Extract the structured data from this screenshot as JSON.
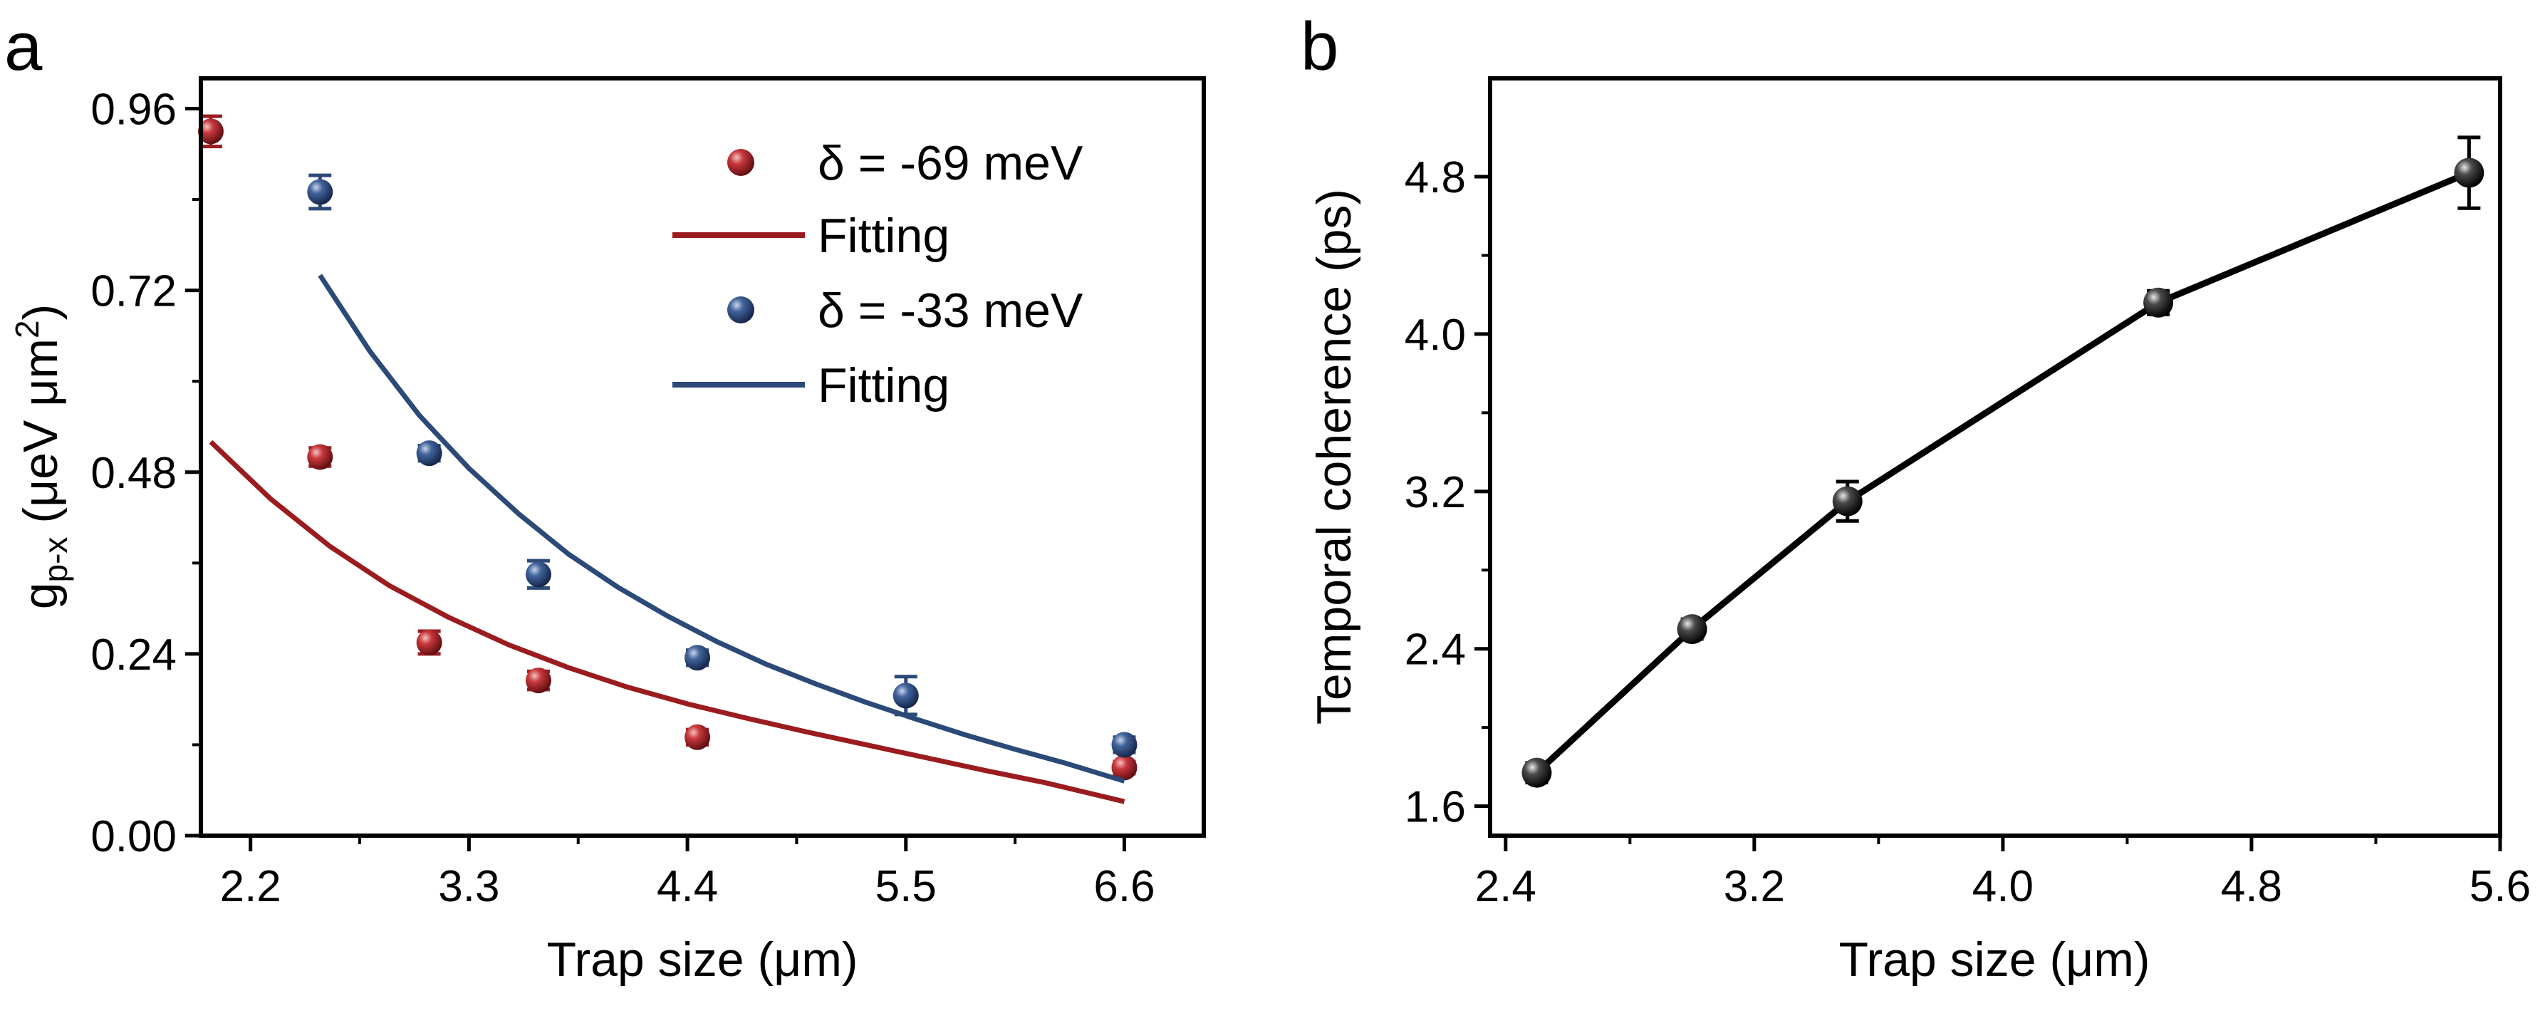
{
  "chart_data": [
    {
      "panel_label": "a",
      "type": "scatter",
      "xlabel": "Trap size (μm)",
      "ylabel": {
        "base": "g",
        "sub": "p-x",
        "rest": " (μeV μm",
        "sup": "2",
        "close": ")"
      },
      "xlim": [
        1.95,
        7.0
      ],
      "ylim": [
        0,
        1.0
      ],
      "xticks": [
        2.2,
        3.3,
        4.4,
        5.5,
        6.6
      ],
      "xtick_labels": [
        "2.2",
        "3.3",
        "4.4",
        "5.5",
        "6.6"
      ],
      "yticks": [
        0.0,
        0.24,
        0.48,
        0.72,
        0.96
      ],
      "ytick_labels": [
        "0.00",
        "0.24",
        "0.48",
        "0.72",
        "0.96"
      ],
      "grid": false,
      "legend_position": "top-right",
      "series": [
        {
          "name": "δ = -69 meV",
          "kind": "points",
          "color": "#9b1c1f",
          "x": [
            2.0,
            2.55,
            3.1,
            3.65,
            4.45,
            6.6
          ],
          "y": [
            0.93,
            0.5,
            0.255,
            0.205,
            0.13,
            0.09
          ],
          "err": [
            0.02,
            0.012,
            0.015,
            0.012,
            0.01,
            0.008
          ]
        },
        {
          "name": "Fitting",
          "kind": "line",
          "color": "#9b1c1f",
          "x": [
            2.0,
            2.3,
            2.6,
            2.9,
            3.2,
            3.5,
            3.8,
            4.1,
            4.4,
            4.7,
            5.0,
            5.3,
            5.6,
            5.9,
            6.2,
            6.6
          ],
          "y": [
            0.52,
            0.445,
            0.382,
            0.33,
            0.288,
            0.252,
            0.222,
            0.196,
            0.174,
            0.155,
            0.137,
            0.12,
            0.103,
            0.086,
            0.07,
            0.045
          ]
        },
        {
          "name": "δ = -33 meV",
          "kind": "points",
          "color": "#2b4a78",
          "x": [
            2.55,
            3.1,
            3.65,
            4.45,
            5.5,
            6.6
          ],
          "y": [
            0.85,
            0.505,
            0.345,
            0.235,
            0.185,
            0.12
          ],
          "err": [
            0.022,
            0.01,
            0.018,
            0.01,
            0.025,
            0.01
          ]
        },
        {
          "name": "Fitting",
          "kind": "line",
          "color": "#2b4a78",
          "x": [
            2.55,
            2.8,
            3.05,
            3.3,
            3.55,
            3.8,
            4.05,
            4.3,
            4.55,
            4.8,
            5.05,
            5.3,
            5.55,
            5.8,
            6.05,
            6.3,
            6.6
          ],
          "y": [
            0.74,
            0.64,
            0.555,
            0.485,
            0.425,
            0.372,
            0.328,
            0.29,
            0.256,
            0.226,
            0.2,
            0.176,
            0.154,
            0.133,
            0.114,
            0.096,
            0.072
          ]
        }
      ]
    },
    {
      "panel_label": "b",
      "type": "line",
      "xlabel": "Trap size (μm)",
      "ylabel": "Temporal coherence (ps)",
      "xlim": [
        2.35,
        5.6
      ],
      "ylim": [
        1.45,
        5.3
      ],
      "xticks": [
        2.4,
        3.2,
        4.0,
        4.8,
        5.6
      ],
      "xtick_labels": [
        "2.4",
        "3.2",
        "4.0",
        "4.8",
        "5.6"
      ],
      "yticks": [
        1.6,
        2.4,
        3.2,
        4.0,
        4.8
      ],
      "ytick_labels": [
        "1.6",
        "2.4",
        "3.2",
        "4.0",
        "4.8"
      ],
      "grid": false,
      "series": [
        {
          "name": "Temporal coherence",
          "color": "#000000",
          "x": [
            2.5,
            3.0,
            3.5,
            4.5,
            5.5
          ],
          "y": [
            1.77,
            2.5,
            3.15,
            4.16,
            4.82
          ],
          "err": [
            0.05,
            0.05,
            0.1,
            0.06,
            0.18
          ]
        }
      ]
    }
  ]
}
